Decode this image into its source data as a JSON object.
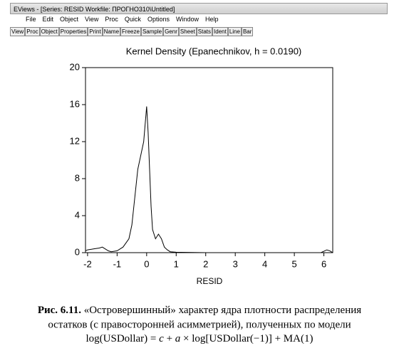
{
  "window": {
    "title": "EViews - [Series: RESID   Workfile: ПРОГНО310\\Untitled]"
  },
  "menu": [
    "File",
    "Edit",
    "Object",
    "View",
    "Proc",
    "Quick",
    "Options",
    "Window",
    "Help"
  ],
  "toolbar": [
    "View",
    "Proc",
    "Object",
    "Properties",
    "Print",
    "Name",
    "Freeze",
    "Sample",
    "Genr",
    "Sheet",
    "Stats",
    "Ident",
    "Line",
    "Bar"
  ],
  "chart_data": {
    "type": "line",
    "title": "Kernel Density (Epanechnikov, h = 0.0190)",
    "x_label": "RESID",
    "x": [
      -2.07,
      -2,
      -1.8,
      -1.6,
      -1.5,
      -1.4,
      -1.3,
      -1.2,
      -1,
      -0.8,
      -0.6,
      -0.5,
      -0.4,
      -0.3,
      -0.2,
      -0.1,
      0,
      0.05,
      0.1,
      0.15,
      0.2,
      0.3,
      0.4,
      0.5,
      0.6,
      0.7,
      0.8,
      1,
      2,
      3,
      4,
      5,
      5.9,
      6.1,
      6.2,
      6.3
    ],
    "series": [
      {
        "color": "#000000",
        "values": [
          0.2,
          0.3,
          0.4,
          0.5,
          0.6,
          0.4,
          0.2,
          0.1,
          0.2,
          0.6,
          1.5,
          3,
          6,
          9,
          10.5,
          12,
          15.8,
          13,
          9,
          5,
          2.5,
          1.5,
          2,
          1.5,
          0.6,
          0.3,
          0.1,
          0.05,
          0,
          0,
          0,
          0,
          0,
          0.3,
          0.2,
          0
        ]
      }
    ],
    "xlim": [
      -2.07,
      6.3
    ],
    "ylim": [
      0,
      20
    ],
    "xticks": [
      -2,
      -1,
      0,
      1,
      2,
      3,
      4,
      5,
      6
    ],
    "yticks": [
      0,
      4,
      8,
      12,
      16,
      20
    ]
  },
  "caption": {
    "label": "Рис. 6.11.",
    "line1": " «Островершинный» характер ядра плотности распределения",
    "line2": "остатков (с правосторонней асимметрией), полученных по модели",
    "line3": [
      "log(USDollar) = ",
      "c",
      " + ",
      "a",
      " × log[USDollar(−1)] + MA(1)"
    ]
  }
}
